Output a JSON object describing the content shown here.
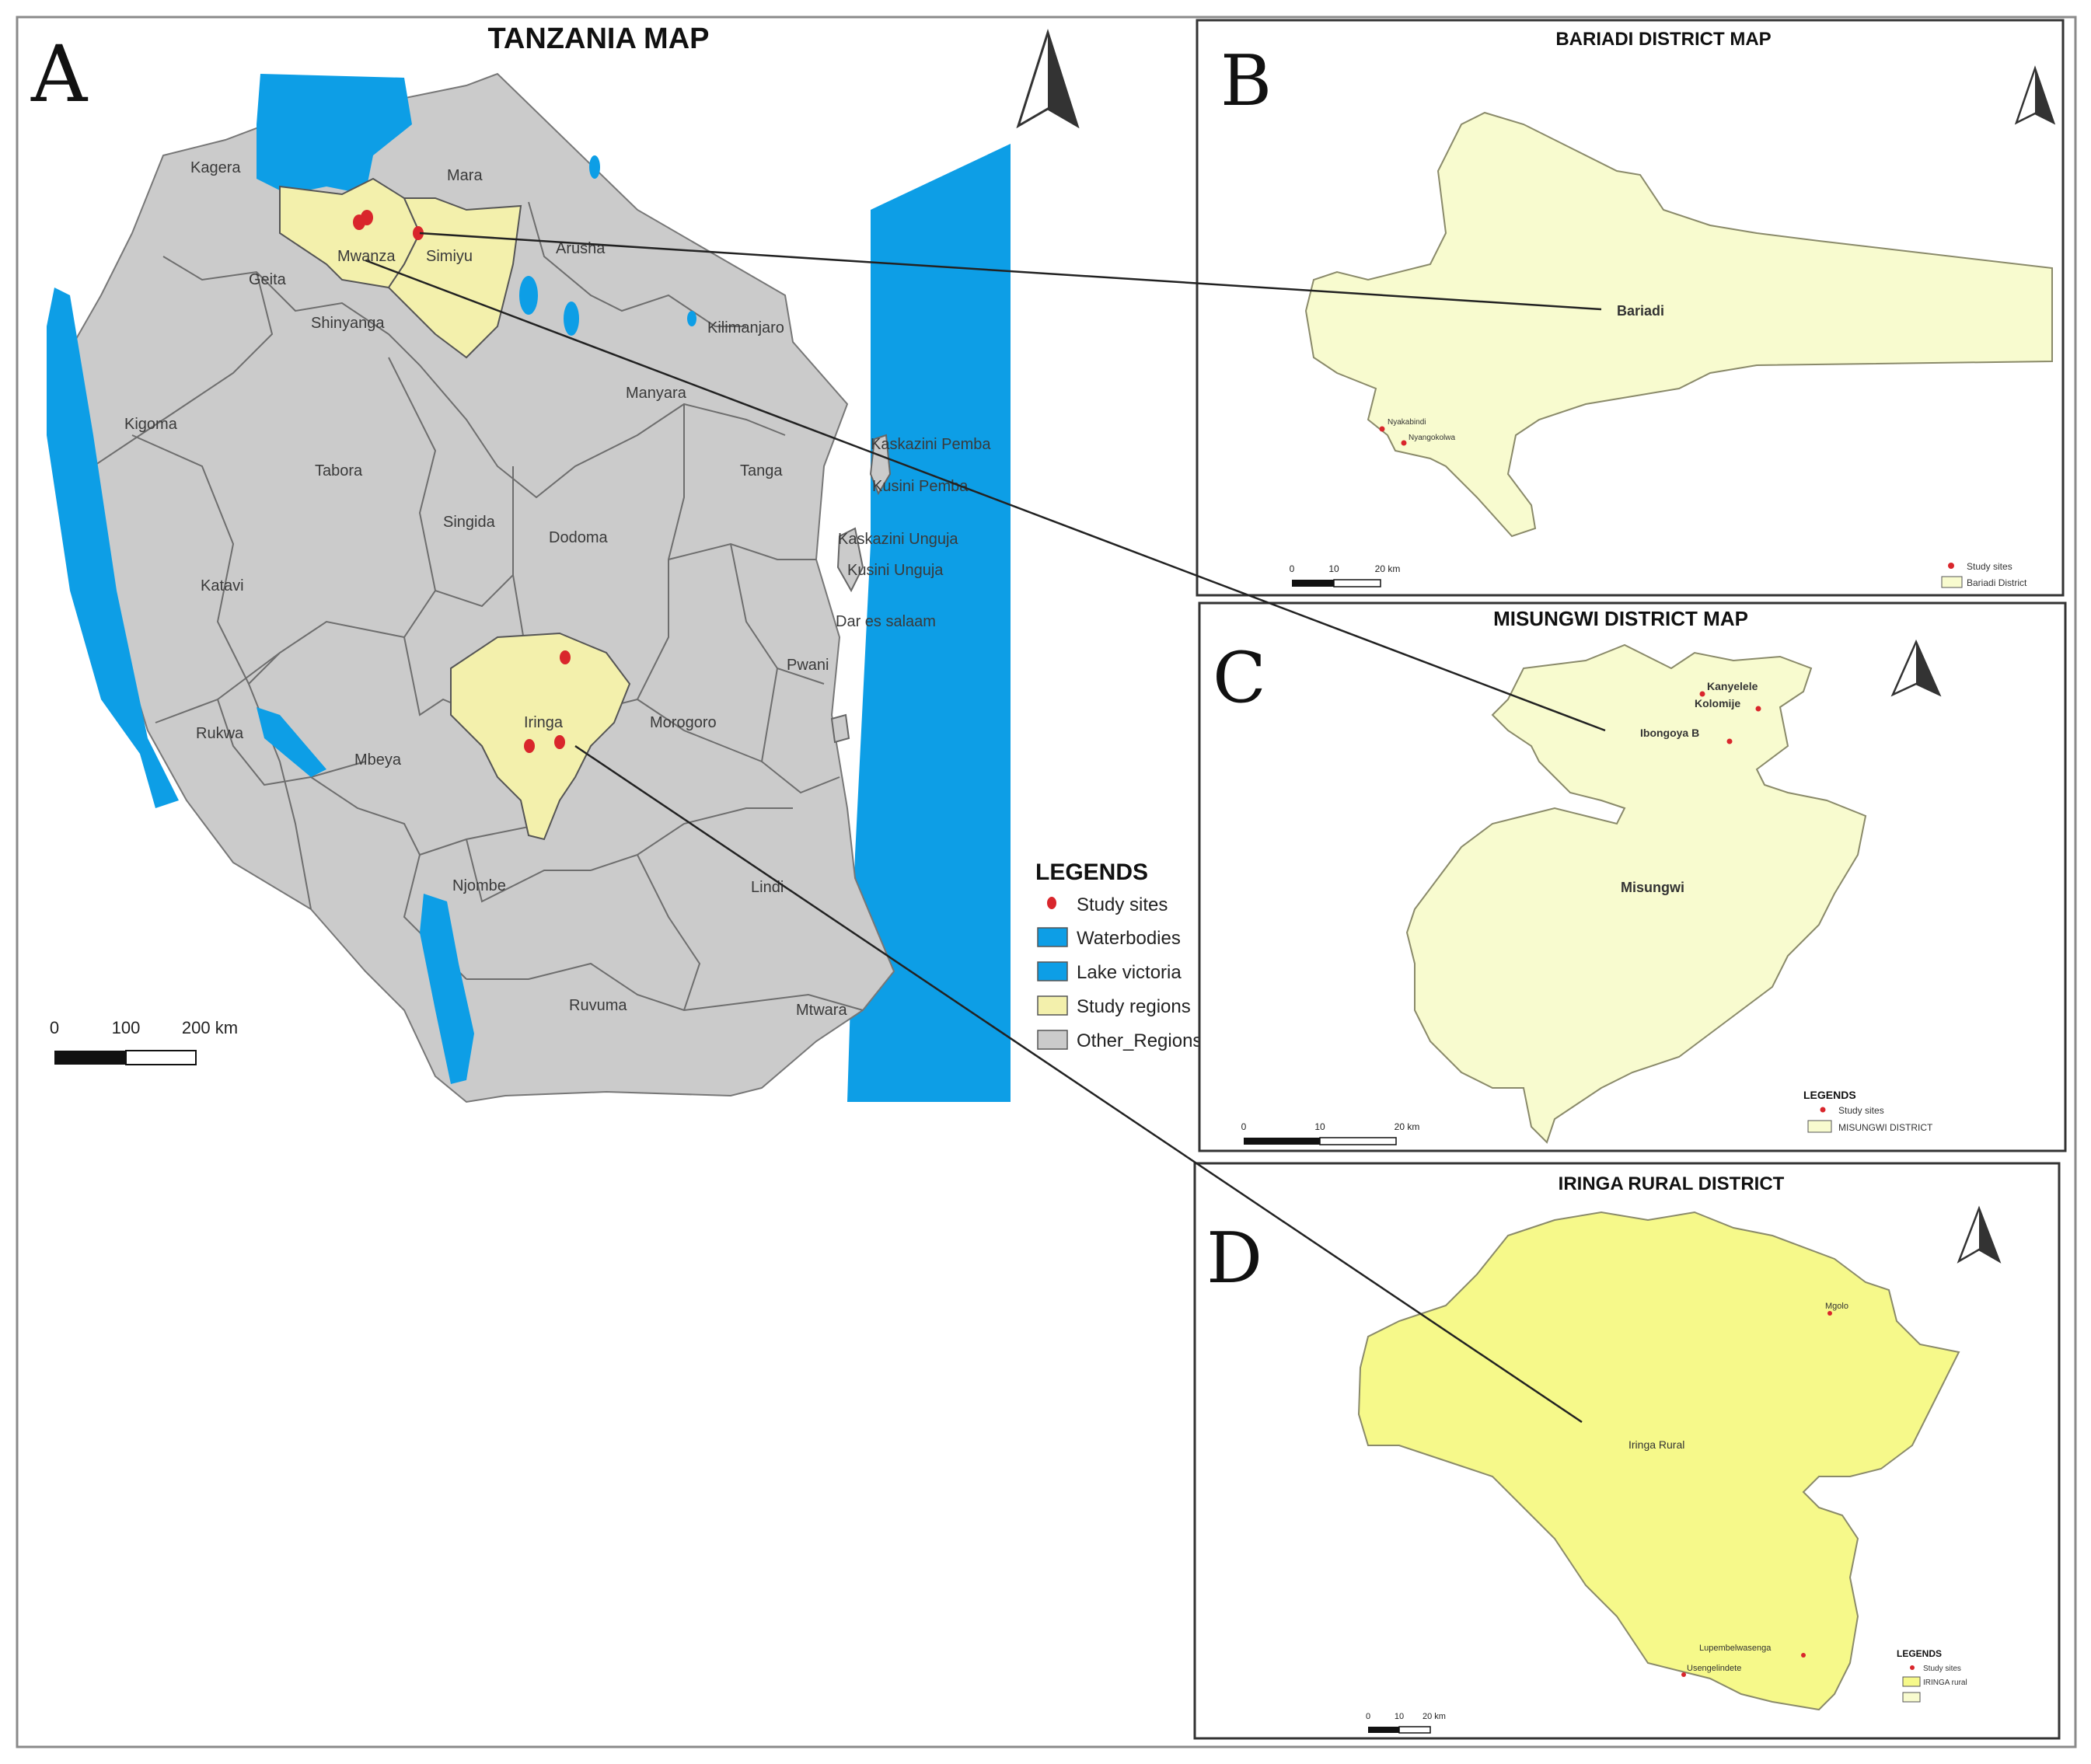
{
  "panelA": {
    "letter": "A",
    "title": "TANZANIA MAP",
    "regions": {
      "mara": "Mara",
      "kagera": "Kagera",
      "mwanza": "Mwanza",
      "simiyu": "Simiyu",
      "arusha": "Arusha",
      "geita": "Geita",
      "shinyanga": "Shinyanga",
      "kilimanjaro": "Kilimanjaro",
      "kigoma": "Kigoma",
      "manyara": "Manyara",
      "kaskazini_pemba": "Kaskazini Pemba",
      "kusini_pemba": "Kusini Pemba",
      "tabora": "Tabora",
      "tanga": "Tanga",
      "singida": "Singida",
      "dodoma": "Dodoma",
      "kaskazini_unguja": "Kaskazini Unguja",
      "kusini_unguja": "Kusini Unguja",
      "katavi": "Katavi",
      "dar_es_salaam": "Dar es salaam",
      "pwani": "Pwani",
      "iringa": "Iringa",
      "morogoro": "Morogoro",
      "rukwa": "Rukwa",
      "mbeya": "Mbeya",
      "njombe": "Njombe",
      "lindi": "Lindi",
      "ruvuma": "Ruvuma",
      "mtwara": "Mtwara"
    },
    "scale": {
      "t0": "0",
      "t1": "100",
      "t2": "200 km"
    },
    "legend": {
      "title": "LEGENDS",
      "items": [
        "Study sites",
        "Waterbodies",
        "Lake victoria",
        "Study regions",
        "Other_Regions"
      ]
    }
  },
  "panelB": {
    "letter": "B",
    "title": "BARIADI DISTRICT MAP",
    "district_label": "Bariadi",
    "sites": [
      "Nyakabindi",
      "Nyangokolwa"
    ],
    "scale": {
      "t0": "0",
      "t1": "10",
      "t2": "20 km"
    },
    "legend": [
      "Study sites",
      "Bariadi District"
    ]
  },
  "panelC": {
    "letter": "C",
    "title": "MISUNGWI DISTRICT MAP",
    "district_label": "Misungwi",
    "sites": [
      "Kanyelele",
      "Kolomije",
      "Ibongoya B"
    ],
    "scale": {
      "t0": "0",
      "t1": "10",
      "t2": "20 km"
    },
    "legend_title": "LEGENDS",
    "legend": [
      "Study sites",
      "MISUNGWI DISTRICT"
    ]
  },
  "panelD": {
    "letter": "D",
    "title": "IRINGA RURAL DISTRICT",
    "district_label": "Iringa Rural",
    "sites": [
      "Mgolo",
      "Lupembelwasenga",
      "Usengelindete"
    ],
    "scale": {
      "t0": "0",
      "t1": "10",
      "t2": "20 km"
    },
    "legend_title": "LEGENDS",
    "legend": [
      "Study sites",
      "IRINGA rural"
    ]
  },
  "colors": {
    "water": "#0d9ee6",
    "regions": "#cbcbcb",
    "study_regions": "#f3f0ac",
    "district_fill": "#f8fbcf",
    "iringa_fill": "#f6f98a",
    "site": "#d9262c"
  }
}
